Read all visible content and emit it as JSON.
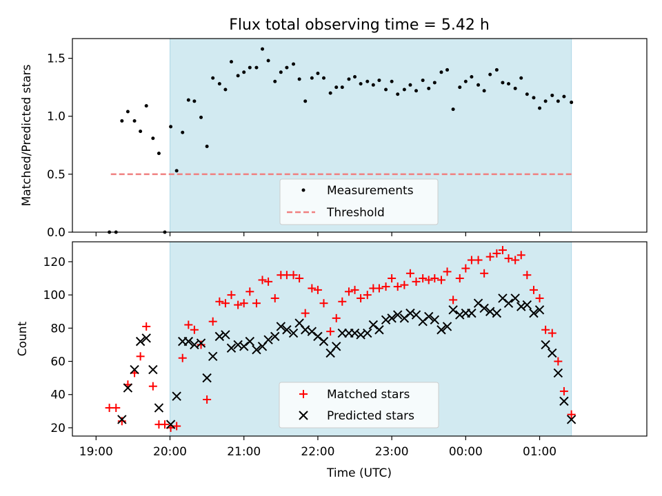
{
  "figure": {
    "title": "Flux total observing time = 5.42 h",
    "xlabel": "Time (UTC)",
    "x_tick_labels": [
      "19:00",
      "20:00",
      "21:00",
      "22:00",
      "23:00",
      "00:00",
      "01:00"
    ],
    "x_tick_hours": [
      19,
      20,
      21,
      22,
      23,
      24,
      25
    ],
    "xlim_hours": [
      18.68,
      26.45
    ],
    "shaded_span_hours": [
      20.0,
      25.43
    ],
    "shade_color": "#add8e6"
  },
  "chart_data": [
    {
      "type": "scatter",
      "ylabel": "Matched/Predicted stars",
      "ylim": [
        0,
        1.67
      ],
      "y_ticks": [
        0.0,
        0.5,
        1.0,
        1.5
      ],
      "y_tick_labels": [
        "0.0",
        "0.5",
        "1.0",
        "1.5"
      ],
      "legend": {
        "placement": "lower-center",
        "entries": [
          "Measurements",
          "Threshold"
        ]
      },
      "threshold": {
        "value": 0.5,
        "x_range_hours": [
          19.2,
          25.45
        ],
        "color": "#f08080"
      },
      "series": [
        {
          "name": "Measurements",
          "color": "#000000",
          "points": [
            [
              19.18,
              0.0
            ],
            [
              19.27,
              0.0
            ],
            [
              19.35,
              0.96
            ],
            [
              19.43,
              1.04
            ],
            [
              19.52,
              0.96
            ],
            [
              19.6,
              0.87
            ],
            [
              19.68,
              1.09
            ],
            [
              19.77,
              0.81
            ],
            [
              19.85,
              0.68
            ],
            [
              19.93,
              0.0
            ],
            [
              20.01,
              0.91
            ],
            [
              20.09,
              0.53
            ],
            [
              20.17,
              0.86
            ],
            [
              20.25,
              1.14
            ],
            [
              20.33,
              1.13
            ],
            [
              20.42,
              0.99
            ],
            [
              20.5,
              0.74
            ],
            [
              20.58,
              1.33
            ],
            [
              20.67,
              1.28
            ],
            [
              20.75,
              1.23
            ],
            [
              20.83,
              1.47
            ],
            [
              20.92,
              1.35
            ],
            [
              21.0,
              1.38
            ],
            [
              21.08,
              1.42
            ],
            [
              21.17,
              1.42
            ],
            [
              21.25,
              1.58
            ],
            [
              21.33,
              1.48
            ],
            [
              21.42,
              1.3
            ],
            [
              21.5,
              1.38
            ],
            [
              21.58,
              1.42
            ],
            [
              21.67,
              1.45
            ],
            [
              21.75,
              1.32
            ],
            [
              21.83,
              1.13
            ],
            [
              21.92,
              1.33
            ],
            [
              22.0,
              1.37
            ],
            [
              22.08,
              1.33
            ],
            [
              22.17,
              1.2
            ],
            [
              22.25,
              1.25
            ],
            [
              22.33,
              1.25
            ],
            [
              22.42,
              1.32
            ],
            [
              22.5,
              1.34
            ],
            [
              22.58,
              1.28
            ],
            [
              22.67,
              1.3
            ],
            [
              22.75,
              1.27
            ],
            [
              22.83,
              1.31
            ],
            [
              22.92,
              1.23
            ],
            [
              23.0,
              1.3
            ],
            [
              23.08,
              1.19
            ],
            [
              23.17,
              1.23
            ],
            [
              23.25,
              1.27
            ],
            [
              23.33,
              1.22
            ],
            [
              23.42,
              1.31
            ],
            [
              23.5,
              1.24
            ],
            [
              23.58,
              1.29
            ],
            [
              23.67,
              1.38
            ],
            [
              23.75,
              1.4
            ],
            [
              23.83,
              1.06
            ],
            [
              23.92,
              1.25
            ],
            [
              24.0,
              1.3
            ],
            [
              24.08,
              1.34
            ],
            [
              24.17,
              1.27
            ],
            [
              24.25,
              1.22
            ],
            [
              24.33,
              1.36
            ],
            [
              24.42,
              1.4
            ],
            [
              24.5,
              1.29
            ],
            [
              24.58,
              1.28
            ],
            [
              24.67,
              1.24
            ],
            [
              24.75,
              1.33
            ],
            [
              24.83,
              1.19
            ],
            [
              24.92,
              1.16
            ],
            [
              25.0,
              1.07
            ],
            [
              25.08,
              1.13
            ],
            [
              25.17,
              1.18
            ],
            [
              25.25,
              1.13
            ],
            [
              25.33,
              1.17
            ],
            [
              25.43,
              1.12
            ]
          ]
        }
      ]
    },
    {
      "type": "scatter",
      "ylabel": "Count",
      "ylim": [
        15,
        132
      ],
      "y_ticks": [
        20,
        40,
        60,
        80,
        100,
        120
      ],
      "y_tick_labels": [
        "20",
        "40",
        "60",
        "80",
        "100",
        "120"
      ],
      "legend": {
        "placement": "lower-center",
        "entries": [
          "Matched stars",
          "Predicted stars"
        ]
      },
      "series": [
        {
          "name": "Matched stars",
          "marker": "plus",
          "color": "#ff0000",
          "points": [
            [
              19.18,
              32
            ],
            [
              19.27,
              32
            ],
            [
              19.35,
              24
            ],
            [
              19.43,
              46
            ],
            [
              19.52,
              53
            ],
            [
              19.6,
              63
            ],
            [
              19.68,
              81
            ],
            [
              19.77,
              45
            ],
            [
              19.85,
              22
            ],
            [
              19.93,
              22
            ],
            [
              20.01,
              20
            ],
            [
              20.09,
              21
            ],
            [
              20.17,
              62
            ],
            [
              20.25,
              82
            ],
            [
              20.33,
              79
            ],
            [
              20.42,
              70
            ],
            [
              20.5,
              37
            ],
            [
              20.58,
              84
            ],
            [
              20.67,
              96
            ],
            [
              20.75,
              95
            ],
            [
              20.83,
              100
            ],
            [
              20.92,
              94
            ],
            [
              21.0,
              95
            ],
            [
              21.08,
              102
            ],
            [
              21.17,
              95
            ],
            [
              21.25,
              109
            ],
            [
              21.33,
              108
            ],
            [
              21.42,
              98
            ],
            [
              21.5,
              112
            ],
            [
              21.58,
              112
            ],
            [
              21.67,
              112
            ],
            [
              21.75,
              110
            ],
            [
              21.83,
              89
            ],
            [
              21.92,
              104
            ],
            [
              22.0,
              103
            ],
            [
              22.08,
              95
            ],
            [
              22.17,
              78
            ],
            [
              22.25,
              86
            ],
            [
              22.33,
              96
            ],
            [
              22.42,
              102
            ],
            [
              22.5,
              103
            ],
            [
              22.58,
              98
            ],
            [
              22.67,
              100
            ],
            [
              22.75,
              104
            ],
            [
              22.83,
              104
            ],
            [
              22.92,
              105
            ],
            [
              23.0,
              110
            ],
            [
              23.08,
              105
            ],
            [
              23.17,
              106
            ],
            [
              23.25,
              113
            ],
            [
              23.33,
              108
            ],
            [
              23.42,
              110
            ],
            [
              23.5,
              109
            ],
            [
              23.58,
              110
            ],
            [
              23.67,
              109
            ],
            [
              23.75,
              114
            ],
            [
              23.83,
              97
            ],
            [
              23.92,
              110
            ],
            [
              24.0,
              116
            ],
            [
              24.08,
              121
            ],
            [
              24.17,
              121
            ],
            [
              24.25,
              113
            ],
            [
              24.33,
              123
            ],
            [
              24.42,
              125
            ],
            [
              24.5,
              127
            ],
            [
              24.58,
              122
            ],
            [
              24.67,
              121
            ],
            [
              24.75,
              124
            ],
            [
              24.83,
              112
            ],
            [
              24.92,
              103
            ],
            [
              25.0,
              98
            ],
            [
              25.08,
              79
            ],
            [
              25.17,
              77
            ],
            [
              25.25,
              60
            ],
            [
              25.33,
              42
            ],
            [
              25.43,
              28
            ]
          ]
        },
        {
          "name": "Predicted stars",
          "marker": "x",
          "color": "#000000",
          "points": [
            [
              19.35,
              25
            ],
            [
              19.43,
              44
            ],
            [
              19.52,
              55
            ],
            [
              19.6,
              72
            ],
            [
              19.68,
              74
            ],
            [
              19.77,
              55
            ],
            [
              19.85,
              32
            ],
            [
              20.01,
              22
            ],
            [
              20.09,
              39
            ],
            [
              20.17,
              72
            ],
            [
              20.25,
              72
            ],
            [
              20.33,
              70
            ],
            [
              20.42,
              71
            ],
            [
              20.5,
              50
            ],
            [
              20.58,
              63
            ],
            [
              20.67,
              75
            ],
            [
              20.75,
              76
            ],
            [
              20.83,
              68
            ],
            [
              20.92,
              70
            ],
            [
              21.0,
              69
            ],
            [
              21.08,
              72
            ],
            [
              21.17,
              67
            ],
            [
              21.25,
              69
            ],
            [
              21.33,
              73
            ],
            [
              21.42,
              75
            ],
            [
              21.5,
              81
            ],
            [
              21.58,
              79
            ],
            [
              21.67,
              77
            ],
            [
              21.75,
              83
            ],
            [
              21.83,
              79
            ],
            [
              21.92,
              78
            ],
            [
              22.0,
              75
            ],
            [
              22.08,
              72
            ],
            [
              22.17,
              65
            ],
            [
              22.25,
              69
            ],
            [
              22.33,
              77
            ],
            [
              22.42,
              77
            ],
            [
              22.5,
              77
            ],
            [
              22.58,
              76
            ],
            [
              22.67,
              77
            ],
            [
              22.75,
              82
            ],
            [
              22.83,
              79
            ],
            [
              22.92,
              85
            ],
            [
              23.0,
              86
            ],
            [
              23.08,
              88
            ],
            [
              23.17,
              86
            ],
            [
              23.25,
              89
            ],
            [
              23.33,
              88
            ],
            [
              23.42,
              84
            ],
            [
              23.5,
              87
            ],
            [
              23.58,
              85
            ],
            [
              23.67,
              79
            ],
            [
              23.75,
              81
            ],
            [
              23.83,
              91
            ],
            [
              23.92,
              88
            ],
            [
              24.0,
              89
            ],
            [
              24.08,
              89
            ],
            [
              24.17,
              95
            ],
            [
              24.25,
              92
            ],
            [
              24.33,
              90
            ],
            [
              24.42,
              89
            ],
            [
              24.5,
              98
            ],
            [
              24.58,
              95
            ],
            [
              24.67,
              98
            ],
            [
              24.75,
              93
            ],
            [
              24.83,
              94
            ],
            [
              24.92,
              89
            ],
            [
              25.0,
              91
            ],
            [
              25.08,
              70
            ],
            [
              25.17,
              65
            ],
            [
              25.25,
              53
            ],
            [
              25.33,
              36
            ],
            [
              25.43,
              25
            ]
          ]
        }
      ]
    }
  ]
}
